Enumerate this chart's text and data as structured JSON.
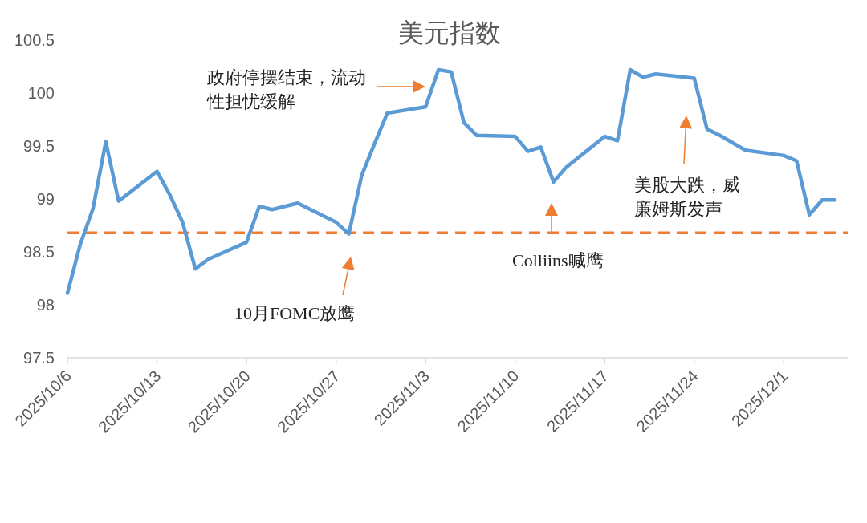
{
  "chart_data": {
    "type": "line",
    "title": "美元指数",
    "x": [
      "2025-10-06",
      "2025-10-07",
      "2025-10-08",
      "2025-10-09",
      "2025-10-10",
      "2025-10-13",
      "2025-10-14",
      "2025-10-15",
      "2025-10-16",
      "2025-10-17",
      "2025-10-20",
      "2025-10-21",
      "2025-10-22",
      "2025-10-23",
      "2025-10-24",
      "2025-10-27",
      "2025-10-28",
      "2025-10-29",
      "2025-10-30",
      "2025-10-31",
      "2025-11-03",
      "2025-11-04",
      "2025-11-05",
      "2025-11-06",
      "2025-11-07",
      "2025-11-10",
      "2025-11-11",
      "2025-11-12",
      "2025-11-13",
      "2025-11-14",
      "2025-11-17",
      "2025-11-18",
      "2025-11-19",
      "2025-11-20",
      "2025-11-21",
      "2025-11-24",
      "2025-11-25",
      "2025-11-26",
      "2025-11-27",
      "2025-11-28",
      "2025-12-01",
      "2025-12-02",
      "2025-12-03",
      "2025-12-04",
      "2025-12-05"
    ],
    "series": [
      {
        "color": "#5b9bd5",
        "values": [
          98.11,
          98.57,
          98.91,
          99.54,
          98.98,
          99.26,
          99.04,
          98.78,
          98.34,
          98.43,
          98.59,
          98.93,
          98.9,
          98.93,
          98.96,
          98.78,
          98.67,
          99.22,
          99.52,
          99.81,
          99.87,
          100.22,
          100.2,
          99.72,
          99.6,
          99.59,
          99.45,
          99.49,
          99.16,
          99.3,
          99.59,
          99.55,
          100.22,
          100.15,
          100.18,
          100.14,
          99.66,
          99.6,
          99.53,
          99.46,
          99.41,
          99.36,
          98.85,
          98.99,
          98.99
        ]
      }
    ],
    "xlim": [
      "2025-10-06",
      "2025-12-06"
    ],
    "xticks": [
      {
        "value": "2025-10-06",
        "label": "2025/10/6"
      },
      {
        "value": "2025-10-13",
        "label": "2025/10/13"
      },
      {
        "value": "2025-10-20",
        "label": "2025/10/20"
      },
      {
        "value": "2025-10-27",
        "label": "2025/10/27"
      },
      {
        "value": "2025-11-03",
        "label": "2025/11/3"
      },
      {
        "value": "2025-11-10",
        "label": "2025/11/10"
      },
      {
        "value": "2025-11-17",
        "label": "2025/11/17"
      },
      {
        "value": "2025-11-24",
        "label": "2025/11/24"
      },
      {
        "value": "2025-12-01",
        "label": "2025/12/1"
      }
    ],
    "ylim": [
      97.5,
      100.5
    ],
    "yticks": [
      97.5,
      98,
      98.5,
      99,
      99.5,
      100,
      100.5
    ],
    "ref_lines": [
      {
        "axis": "y",
        "value": 98.68,
        "color": "#ed7d31",
        "line_style": "dashed"
      }
    ],
    "annotations": [
      "政府停摆结束，流动性担忧缓解",
      "10月FOMC放鹰",
      "Colliins喊鹰",
      "美股大跌，威廉姆斯发声"
    ]
  }
}
